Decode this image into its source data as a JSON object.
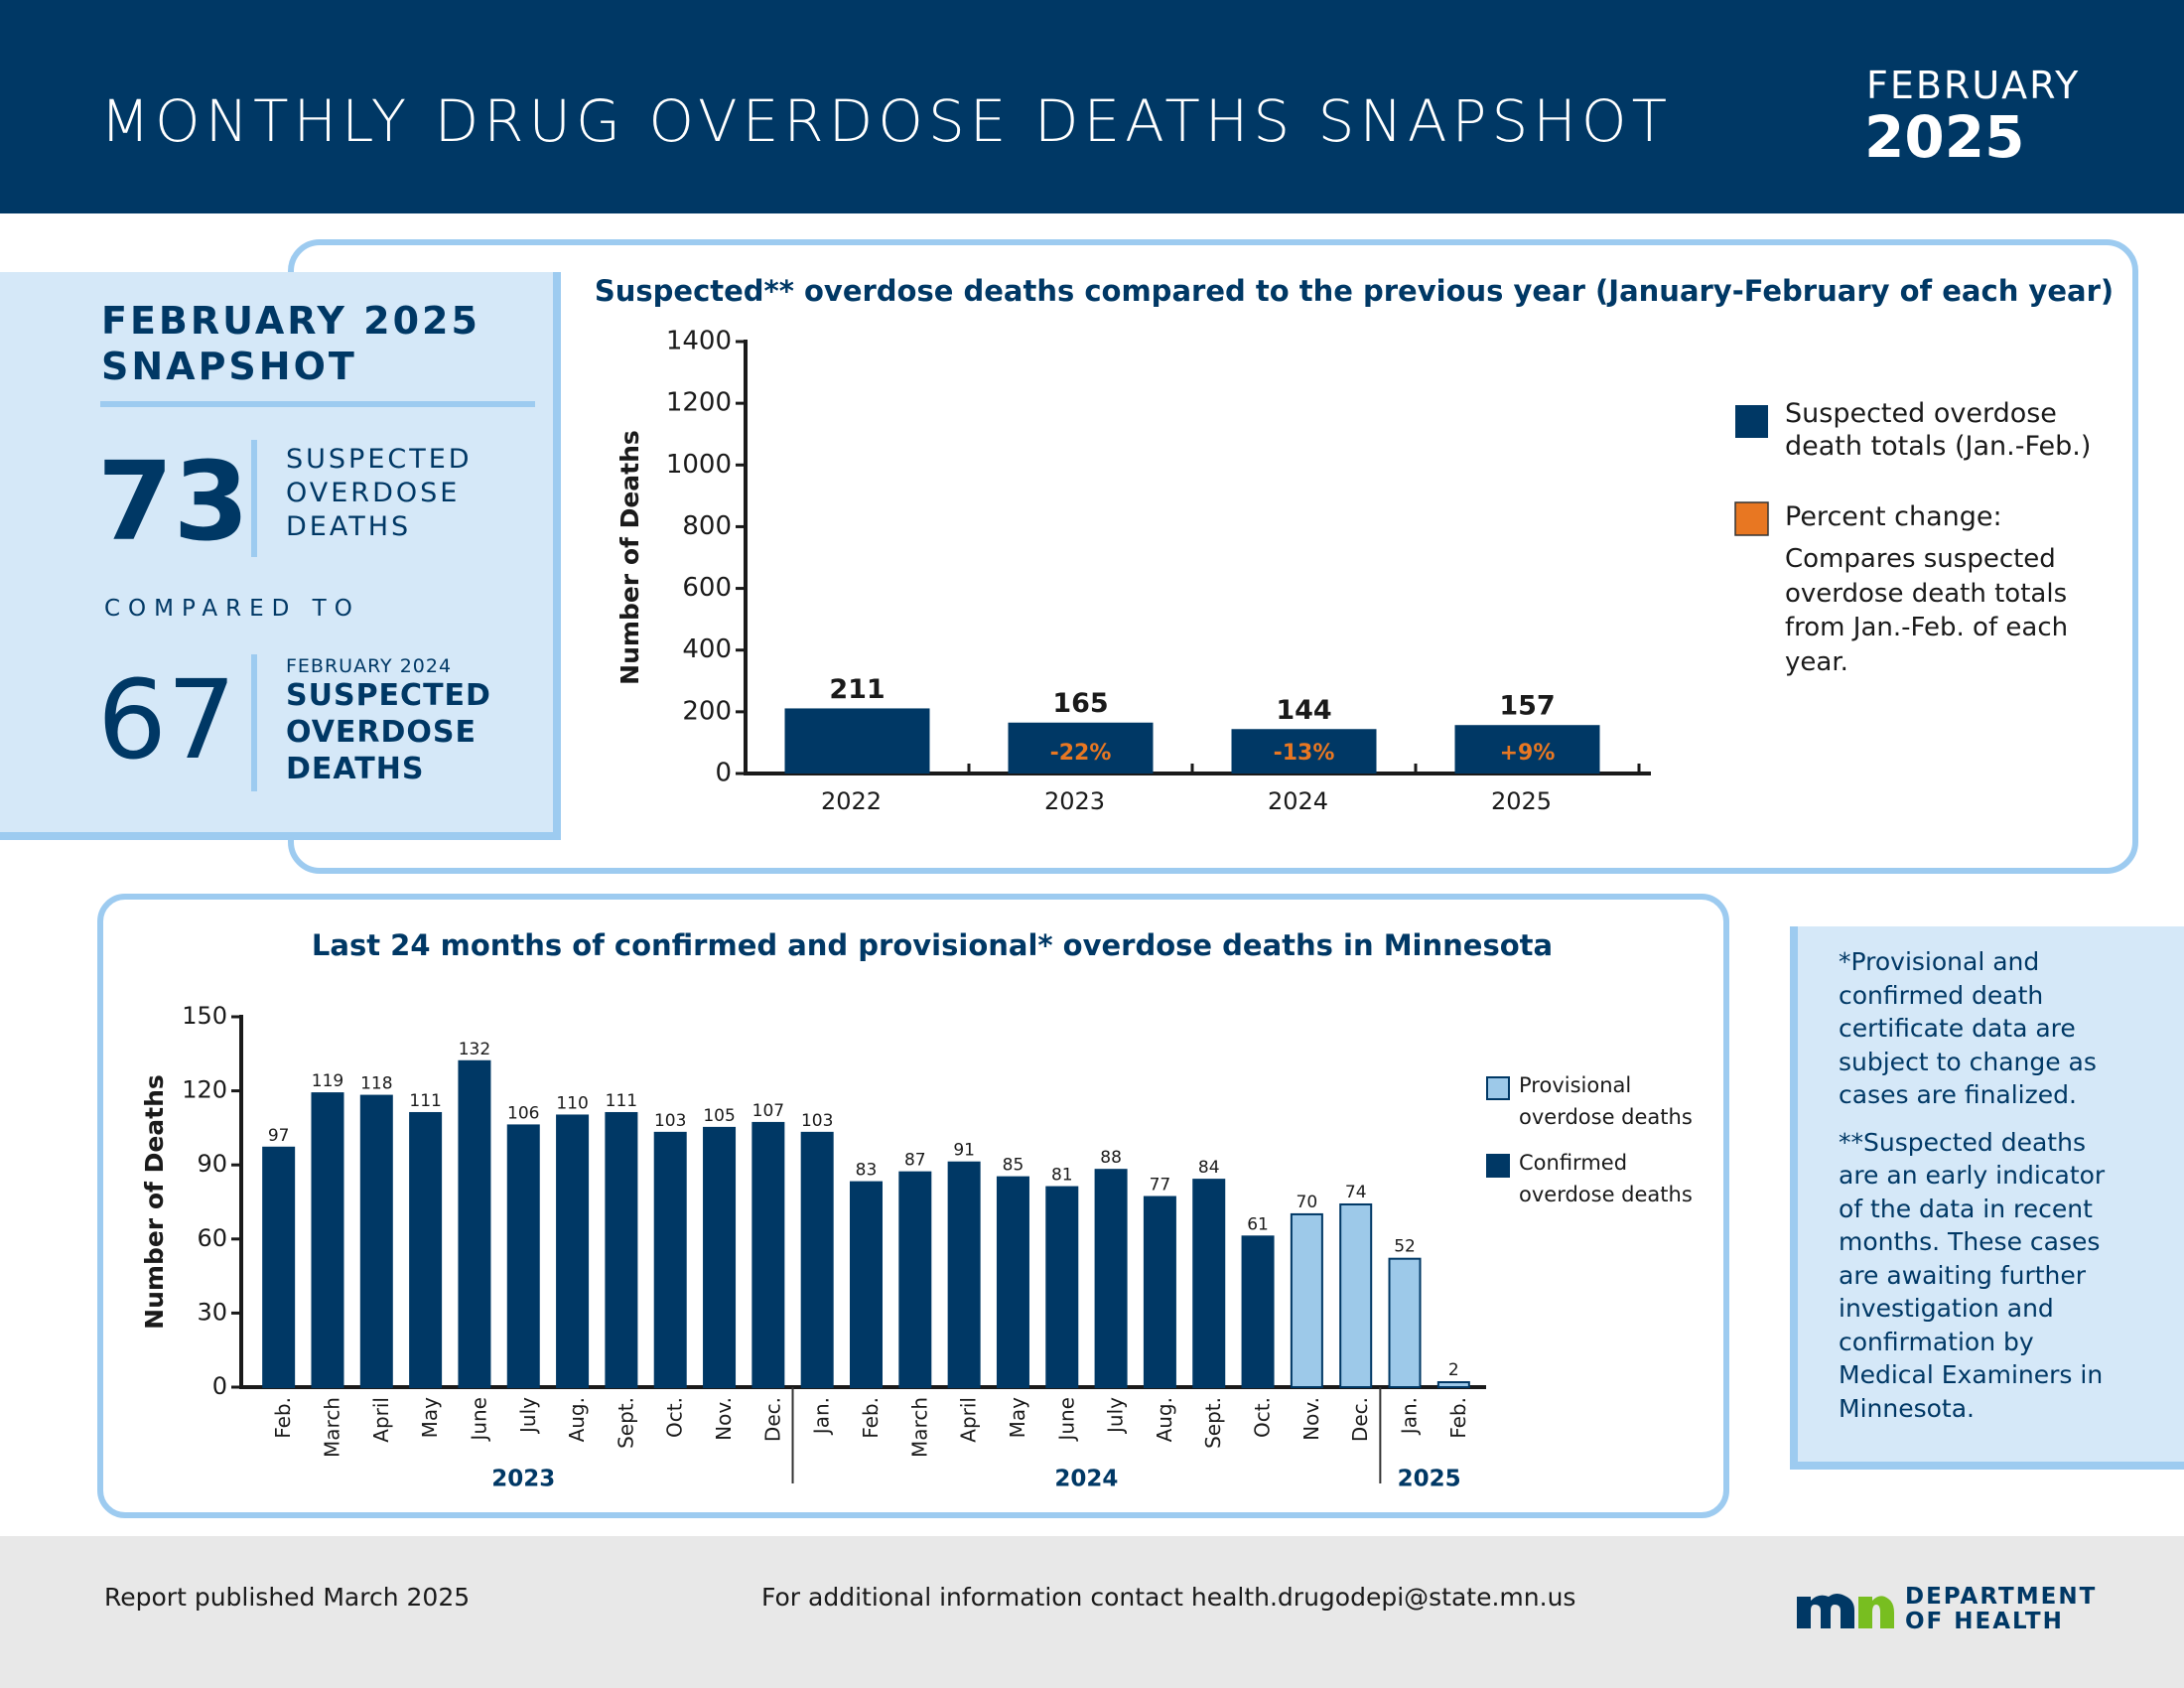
{
  "header": {
    "title": "MONTHLY DRUG OVERDOSE DEATHS SNAPSHOT",
    "month": "FEBRUARY",
    "year": "2025"
  },
  "snapshot": {
    "title": [
      "FEBRUARY 2025",
      "SNAPSHOT"
    ],
    "current_value": "73",
    "current_label": [
      "SUSPECTED",
      "OVERDOSE",
      "DEATHS"
    ],
    "compared": "COMPARED TO",
    "previous_value": "67",
    "previous_period": "FEBRUARY 2024",
    "previous_label": [
      "SUSPECTED",
      "OVERDOSE",
      "DEATHS"
    ]
  },
  "chart_data": [
    {
      "type": "bar",
      "title": "Suspected** overdose deaths compared to the previous year (January-February of each year)",
      "y_label": "Number of Deaths",
      "categories": [
        "2022",
        "2023",
        "2024",
        "2025"
      ],
      "series": [
        {
          "name": "Suspected overdose death totals (Jan.-Feb.)",
          "color": "#003865",
          "values": [
            211,
            165,
            144,
            157
          ]
        }
      ],
      "percent_change": {
        "name": "Percent change:",
        "description": "Compares suspected overdose death totals from Jan.-Feb. of each year.",
        "color": "#e87722",
        "values": [
          null,
          -22,
          -13,
          9
        ],
        "value_labels": [
          null,
          "-22%",
          "-13%",
          "+9%"
        ]
      },
      "ylim": [
        0,
        1400
      ],
      "yticks": [
        0,
        200,
        400,
        600,
        800,
        1000,
        1200,
        1400
      ]
    },
    {
      "type": "bar",
      "title": "Last 24 months of confirmed and provisional* overdose deaths in Minnesota",
      "y_label": "Number of Deaths",
      "category_groups": [
        {
          "label": "2023",
          "categories": [
            "Feb.",
            "March",
            "April",
            "May",
            "June",
            "July",
            "Aug.",
            "Sept.",
            "Oct.",
            "Nov.",
            "Dec."
          ]
        },
        {
          "label": "2024",
          "categories": [
            "Jan.",
            "Feb.",
            "March",
            "April",
            "May",
            "June",
            "July",
            "Aug.",
            "Sept.",
            "Oct.",
            "Nov.",
            "Dec."
          ]
        },
        {
          "label": "2025",
          "categories": [
            "Jan.",
            "Feb."
          ]
        }
      ],
      "series": [
        {
          "name": "Provisional overdose deaths",
          "color": "#9dc9e9",
          "values": [
            null,
            null,
            null,
            null,
            null,
            null,
            null,
            null,
            null,
            null,
            null,
            null,
            null,
            null,
            null,
            null,
            null,
            null,
            null,
            null,
            null,
            70,
            74,
            52,
            2
          ]
        },
        {
          "name": "Confirmed overdose deaths",
          "color": "#003865",
          "values": [
            97,
            119,
            118,
            111,
            132,
            106,
            110,
            111,
            103,
            105,
            107,
            103,
            83,
            87,
            91,
            85,
            81,
            88,
            77,
            84,
            61,
            null,
            null,
            null,
            null
          ]
        }
      ],
      "ylim": [
        0,
        150
      ],
      "yticks": [
        0,
        30,
        60,
        90,
        120,
        150
      ]
    }
  ],
  "notes": [
    "*Provisional and confirmed death certificate data are subject to change as cases are finalized.",
    "**Suspected deaths are an early indicator of the data in recent months. These cases are awaiting further investigation and confirmation by Medical Examiners in Minnesota."
  ],
  "footer": {
    "published": "Report published March 2025",
    "contact": "For additional information contact health.drugodepi@state.mn.us",
    "logo": [
      "DEPARTMENT",
      "OF HEALTH"
    ]
  }
}
